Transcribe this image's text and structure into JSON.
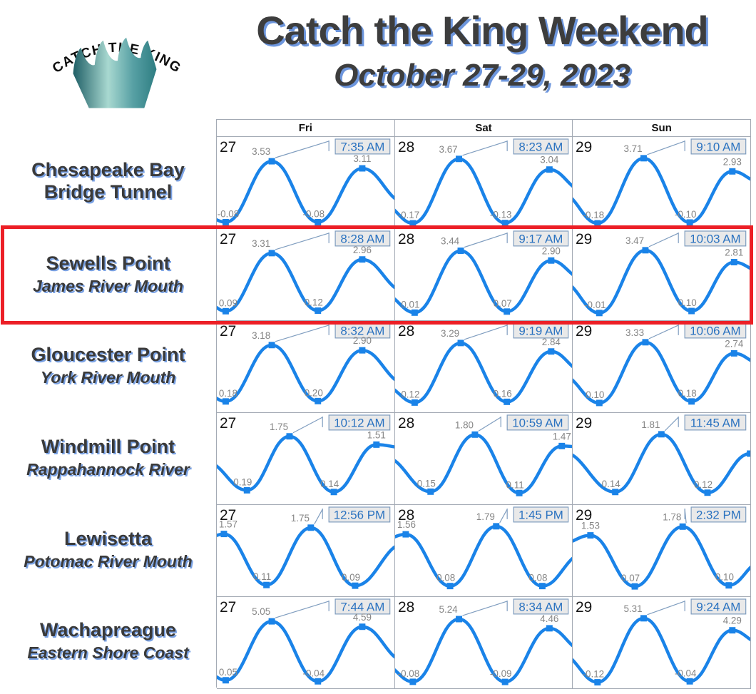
{
  "header": {
    "title": "Catch the King Weekend",
    "subtitle": "October 27-29, 2023",
    "logo_text": "CATCH THE KING"
  },
  "colors": {
    "curve": "#1a83e8",
    "marker": "#1a83e8",
    "value_label": "#868686",
    "day_number": "#161616",
    "time_text": "#2a72c0",
    "time_box_bg": "#e9e9e9",
    "time_box_border": "#7f9dbf",
    "callout_line": "#7f9dbf",
    "grid_border": "#a3aab4",
    "title_shadow": "#6d96dd",
    "highlight_red": "#ec1f26",
    "crown_teal_dark": "#1f5f66",
    "crown_teal_light": "#a8d8d0"
  },
  "highlight": {
    "location": "Sewells Point",
    "row_index": 1
  },
  "chart_data": {
    "type": "line",
    "columns": [
      "Fri",
      "Sat",
      "Sun"
    ],
    "day_numbers": [
      "27",
      "28",
      "29"
    ],
    "locations": [
      {
        "name": "Chesapeake Bay Bridge Tunnel",
        "sublabel": "",
        "ylim": [
          0,
          3.71
        ],
        "days": [
          {
            "day": "27",
            "time": "7:35 AM",
            "points": [
              {
                "x": 0.0,
                "v": 0.25,
                "k": "edge"
              },
              {
                "x": 0.05,
                "v": -0.08,
                "k": "low",
                "label": "-0.08"
              },
              {
                "x": 0.31,
                "v": 3.53,
                "k": "main",
                "label": "3.53"
              },
              {
                "x": 0.57,
                "v": -0.08,
                "k": "low",
                "label": "-0.08"
              },
              {
                "x": 0.82,
                "v": 3.11,
                "k": "high",
                "label": "3.11"
              },
              {
                "x": 1.0,
                "v": 1.1,
                "k": "edge"
              }
            ]
          },
          {
            "day": "28",
            "time": "8:23 AM",
            "points": [
              {
                "x": 0.0,
                "v": 0.9,
                "k": "edge"
              },
              {
                "x": 0.1,
                "v": -0.17,
                "k": "low",
                "label": "-0.17"
              },
              {
                "x": 0.36,
                "v": 3.67,
                "k": "main",
                "label": "3.67"
              },
              {
                "x": 0.62,
                "v": -0.13,
                "k": "low",
                "label": "-0.13"
              },
              {
                "x": 0.87,
                "v": 3.04,
                "k": "high",
                "label": "3.04"
              },
              {
                "x": 1.0,
                "v": 1.8,
                "k": "edge"
              }
            ]
          },
          {
            "day": "29",
            "time": "9:10 AM",
            "points": [
              {
                "x": 0.0,
                "v": 1.6,
                "k": "edge"
              },
              {
                "x": 0.14,
                "v": -0.18,
                "k": "low",
                "label": "-0.18"
              },
              {
                "x": 0.4,
                "v": 3.71,
                "k": "main",
                "label": "3.71"
              },
              {
                "x": 0.66,
                "v": -0.1,
                "k": "low",
                "label": "-0.10"
              },
              {
                "x": 0.9,
                "v": 2.93,
                "k": "high",
                "label": "2.93"
              },
              {
                "x": 1.0,
                "v": 2.3,
                "k": "edge"
              }
            ]
          }
        ]
      },
      {
        "name": "Sewells Point",
        "sublabel": "James River Mouth",
        "ylim": [
          0,
          3.47
        ],
        "days": [
          {
            "day": "27",
            "time": "8:28 AM",
            "points": [
              {
                "x": 0.0,
                "v": 0.55,
                "k": "edge"
              },
              {
                "x": 0.05,
                "v": 0.09,
                "k": "low",
                "label": "0.09"
              },
              {
                "x": 0.31,
                "v": 3.31,
                "k": "main",
                "label": "3.31"
              },
              {
                "x": 0.57,
                "v": 0.12,
                "k": "low",
                "label": "0.12"
              },
              {
                "x": 0.82,
                "v": 2.96,
                "k": "high",
                "label": "2.96"
              },
              {
                "x": 1.0,
                "v": 1.2,
                "k": "edge"
              }
            ]
          },
          {
            "day": "28",
            "time": "9:17 AM",
            "points": [
              {
                "x": 0.0,
                "v": 1.0,
                "k": "edge"
              },
              {
                "x": 0.11,
                "v": 0.01,
                "k": "low",
                "label": "0.01"
              },
              {
                "x": 0.37,
                "v": 3.44,
                "k": "main",
                "label": "3.44"
              },
              {
                "x": 0.63,
                "v": 0.07,
                "k": "low",
                "label": "0.07"
              },
              {
                "x": 0.88,
                "v": 2.9,
                "k": "high",
                "label": "2.90"
              },
              {
                "x": 1.0,
                "v": 1.9,
                "k": "edge"
              }
            ]
          },
          {
            "day": "29",
            "time": "10:03 AM",
            "points": [
              {
                "x": 0.0,
                "v": 1.7,
                "k": "edge"
              },
              {
                "x": 0.15,
                "v": -0.01,
                "k": "low",
                "label": "-0.01"
              },
              {
                "x": 0.41,
                "v": 3.47,
                "k": "main",
                "label": "3.47"
              },
              {
                "x": 0.67,
                "v": 0.1,
                "k": "low",
                "label": "0.10"
              },
              {
                "x": 0.91,
                "v": 2.81,
                "k": "high",
                "label": "2.81"
              },
              {
                "x": 1.0,
                "v": 2.3,
                "k": "edge"
              }
            ]
          }
        ]
      },
      {
        "name": "Gloucester Point",
        "sublabel": "York River Mouth",
        "ylim": [
          0,
          3.33
        ],
        "days": [
          {
            "day": "27",
            "time": "8:32 AM",
            "points": [
              {
                "x": 0.0,
                "v": 0.55,
                "k": "edge"
              },
              {
                "x": 0.05,
                "v": 0.18,
                "k": "low",
                "label": "0.18"
              },
              {
                "x": 0.31,
                "v": 3.18,
                "k": "main",
                "label": "3.18"
              },
              {
                "x": 0.57,
                "v": 0.2,
                "k": "low",
                "label": "0.20"
              },
              {
                "x": 0.82,
                "v": 2.9,
                "k": "high",
                "label": "2.90"
              },
              {
                "x": 1.0,
                "v": 1.15,
                "k": "edge"
              }
            ]
          },
          {
            "day": "28",
            "time": "9:19 AM",
            "points": [
              {
                "x": 0.0,
                "v": 1.0,
                "k": "edge"
              },
              {
                "x": 0.11,
                "v": 0.12,
                "k": "low",
                "label": "0.12"
              },
              {
                "x": 0.37,
                "v": 3.29,
                "k": "main",
                "label": "3.29"
              },
              {
                "x": 0.63,
                "v": 0.16,
                "k": "low",
                "label": "0.16"
              },
              {
                "x": 0.88,
                "v": 2.84,
                "k": "high",
                "label": "2.84"
              },
              {
                "x": 1.0,
                "v": 1.8,
                "k": "edge"
              }
            ]
          },
          {
            "day": "29",
            "time": "10:06 AM",
            "points": [
              {
                "x": 0.0,
                "v": 1.55,
                "k": "edge"
              },
              {
                "x": 0.15,
                "v": 0.1,
                "k": "low",
                "label": "0.10"
              },
              {
                "x": 0.41,
                "v": 3.33,
                "k": "main",
                "label": "3.33"
              },
              {
                "x": 0.67,
                "v": 0.18,
                "k": "low",
                "label": "0.18"
              },
              {
                "x": 0.91,
                "v": 2.74,
                "k": "high",
                "label": "2.74"
              },
              {
                "x": 1.0,
                "v": 2.2,
                "k": "edge"
              }
            ]
          }
        ]
      },
      {
        "name": "Windmill Point",
        "sublabel": "Rappahannock River",
        "ylim": [
          0,
          1.81
        ],
        "days": [
          {
            "day": "27",
            "time": "10:12 AM",
            "points": [
              {
                "x": 0.0,
                "v": 1.0,
                "k": "edge"
              },
              {
                "x": 0.17,
                "v": 0.19,
                "k": "low",
                "label": "0.19"
              },
              {
                "x": 0.41,
                "v": 1.75,
                "k": "main",
                "label": "1.75"
              },
              {
                "x": 0.66,
                "v": 0.14,
                "k": "low",
                "label": "0.14"
              },
              {
                "x": 0.9,
                "v": 1.51,
                "k": "high",
                "label": "1.51"
              },
              {
                "x": 1.0,
                "v": 1.42,
                "k": "edge"
              }
            ]
          },
          {
            "day": "28",
            "time": "10:59 AM",
            "points": [
              {
                "x": 0.0,
                "v": 1.15,
                "k": "edge"
              },
              {
                "x": 0.2,
                "v": 0.15,
                "k": "low",
                "label": "0.15"
              },
              {
                "x": 0.45,
                "v": 1.8,
                "k": "main",
                "label": "1.80"
              },
              {
                "x": 0.7,
                "v": 0.11,
                "k": "low",
                "label": "0.11"
              },
              {
                "x": 0.94,
                "v": 1.47,
                "k": "high",
                "label": "1.47"
              },
              {
                "x": 1.0,
                "v": 1.44,
                "k": "edge"
              }
            ]
          },
          {
            "day": "29",
            "time": "11:45 AM",
            "points": [
              {
                "x": 0.0,
                "v": 1.3,
                "k": "edge"
              },
              {
                "x": 0.24,
                "v": 0.14,
                "k": "low",
                "label": "0.14"
              },
              {
                "x": 0.5,
                "v": 1.81,
                "k": "main",
                "label": "1.81"
              },
              {
                "x": 0.76,
                "v": 0.12,
                "k": "low",
                "label": "0.12"
              },
              {
                "x": 1.0,
                "v": 1.25,
                "k": "edgem"
              }
            ]
          }
        ]
      },
      {
        "name": "Lewisetta",
        "sublabel": "Potomac River Mouth",
        "ylim": [
          0,
          1.79
        ],
        "days": [
          {
            "day": "27",
            "time": "12:56 PM",
            "points": [
              {
                "x": 0.0,
                "v": 1.45,
                "k": "edge"
              },
              {
                "x": 0.04,
                "v": 1.57,
                "k": "high",
                "label": "1.57"
              },
              {
                "x": 0.28,
                "v": 0.11,
                "k": "low",
                "label": "0.11"
              },
              {
                "x": 0.53,
                "v": 1.75,
                "k": "main",
                "label": "1.75"
              },
              {
                "x": 0.78,
                "v": 0.09,
                "k": "low",
                "label": "0.09"
              },
              {
                "x": 1.0,
                "v": 1.3,
                "k": "edge"
              }
            ]
          },
          {
            "day": "28",
            "time": "1:45 PM",
            "points": [
              {
                "x": 0.0,
                "v": 1.42,
                "k": "edge"
              },
              {
                "x": 0.06,
                "v": 1.56,
                "k": "high",
                "label": "1.56"
              },
              {
                "x": 0.31,
                "v": 0.08,
                "k": "low",
                "label": "0.08"
              },
              {
                "x": 0.57,
                "v": 1.79,
                "k": "main",
                "label": "1.79"
              },
              {
                "x": 0.83,
                "v": 0.08,
                "k": "low",
                "label": "0.08"
              },
              {
                "x": 1.0,
                "v": 1.0,
                "k": "edge"
              }
            ]
          },
          {
            "day": "29",
            "time": "2:32 PM",
            "points": [
              {
                "x": 0.0,
                "v": 1.3,
                "k": "edge"
              },
              {
                "x": 0.1,
                "v": 1.53,
                "k": "high",
                "label": "1.53"
              },
              {
                "x": 0.35,
                "v": 0.07,
                "k": "low",
                "label": "0.07"
              },
              {
                "x": 0.62,
                "v": 1.78,
                "k": "main",
                "label": "1.78"
              },
              {
                "x": 0.88,
                "v": 0.1,
                "k": "low",
                "label": "0.10"
              },
              {
                "x": 1.0,
                "v": 0.75,
                "k": "edge"
              }
            ]
          }
        ]
      },
      {
        "name": "Wachapreague",
        "sublabel": "Eastern Shore Coast",
        "ylim": [
          0,
          5.31
        ],
        "days": [
          {
            "day": "27",
            "time": "7:44 AM",
            "points": [
              {
                "x": 0.0,
                "v": 0.7,
                "k": "edge"
              },
              {
                "x": 0.05,
                "v": 0.05,
                "k": "low",
                "label": "0.05"
              },
              {
                "x": 0.31,
                "v": 5.05,
                "k": "main",
                "label": "5.05"
              },
              {
                "x": 0.57,
                "v": -0.04,
                "k": "low",
                "label": "-0.04"
              },
              {
                "x": 0.82,
                "v": 4.59,
                "k": "high",
                "label": "4.59"
              },
              {
                "x": 1.0,
                "v": 1.7,
                "k": "edge"
              }
            ]
          },
          {
            "day": "28",
            "time": "8:34 AM",
            "points": [
              {
                "x": 0.0,
                "v": 1.3,
                "k": "edge"
              },
              {
                "x": 0.1,
                "v": -0.08,
                "k": "low",
                "label": "-0.08"
              },
              {
                "x": 0.36,
                "v": 5.24,
                "k": "main",
                "label": "5.24"
              },
              {
                "x": 0.62,
                "v": -0.09,
                "k": "low",
                "label": "-0.09"
              },
              {
                "x": 0.87,
                "v": 4.46,
                "k": "high",
                "label": "4.46"
              },
              {
                "x": 1.0,
                "v": 2.6,
                "k": "edge"
              }
            ]
          },
          {
            "day": "29",
            "time": "9:24 AM",
            "points": [
              {
                "x": 0.0,
                "v": 2.2,
                "k": "edge"
              },
              {
                "x": 0.14,
                "v": -0.12,
                "k": "low",
                "label": "-0.12"
              },
              {
                "x": 0.4,
                "v": 5.31,
                "k": "main",
                "label": "5.31"
              },
              {
                "x": 0.66,
                "v": -0.04,
                "k": "low",
                "label": "-0.04"
              },
              {
                "x": 0.9,
                "v": 4.29,
                "k": "high",
                "label": "4.29"
              },
              {
                "x": 1.0,
                "v": 3.2,
                "k": "edge"
              }
            ]
          }
        ]
      }
    ]
  }
}
